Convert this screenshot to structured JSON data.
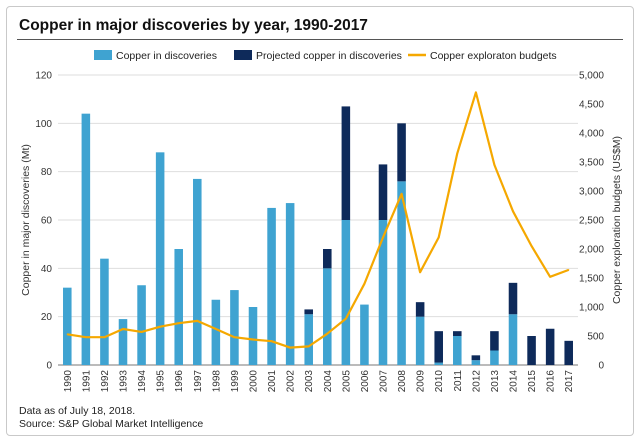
{
  "colors": {
    "discoveries": "#3fa3d1",
    "projected": "#0e2a5a",
    "budget": "#f5a800",
    "grid": "#dedede"
  },
  "chart_data": {
    "type": "bar",
    "title": "Copper in major discoveries by year, 1990-2017",
    "legend": [
      "Copper in discoveries",
      "Projected copper in discoveries",
      "Copper exploraton budgets"
    ],
    "legend_placement": "top",
    "ylabel_left": "Copper in major discoveries (Mt)",
    "ylabel_right": "Copper exploration budgets (US$M)",
    "ylim_left": [
      0,
      120
    ],
    "ylim_right": [
      0,
      5000
    ],
    "yticks_left": [
      "0",
      "20",
      "40",
      "60",
      "80",
      "100",
      "120"
    ],
    "yticks_right": [
      "0",
      "500",
      "1,000",
      "1,500",
      "2,000",
      "2,500",
      "3,000",
      "3,500",
      "4,000",
      "4,500",
      "5,000"
    ],
    "grid": true,
    "categories": [
      "1990",
      "1991",
      "1992",
      "1993",
      "1994",
      "1995",
      "1996",
      "1997",
      "1998",
      "1999",
      "2000",
      "2001",
      "2002",
      "2003",
      "2004",
      "2005",
      "2006",
      "2007",
      "2008",
      "2009",
      "2010",
      "2011",
      "2012",
      "2013",
      "2014",
      "2015",
      "2016",
      "2017"
    ],
    "series": [
      {
        "name": "Copper in discoveries",
        "type": "bar",
        "axis": "left",
        "values": [
          32,
          104,
          44,
          19,
          33,
          88,
          48,
          77,
          27,
          31,
          24,
          65,
          67,
          21,
          40,
          60,
          25,
          60,
          76,
          20,
          1,
          12,
          2,
          6,
          21,
          0,
          0,
          0
        ]
      },
      {
        "name": "Projected copper in discoveries",
        "type": "bar-stacked",
        "axis": "left",
        "values": [
          0,
          0,
          0,
          0,
          0,
          0,
          0,
          0,
          0,
          0,
          0,
          0,
          0,
          2,
          8,
          47,
          0,
          23,
          24,
          6,
          13,
          2,
          2,
          8,
          13,
          12,
          15,
          10
        ]
      },
      {
        "name": "Copper exploraton budgets",
        "type": "line",
        "axis": "right",
        "values": [
          530,
          480,
          480,
          620,
          570,
          660,
          720,
          760,
          620,
          480,
          440,
          410,
          300,
          320,
          540,
          800,
          1400,
          2200,
          2950,
          1600,
          2200,
          3650,
          4700,
          3450,
          2650,
          2050,
          1520,
          1640
        ]
      }
    ]
  },
  "footer": {
    "note": "Data as of July 18, 2018.",
    "source": "Source: S&P Global Market Intelligence"
  }
}
